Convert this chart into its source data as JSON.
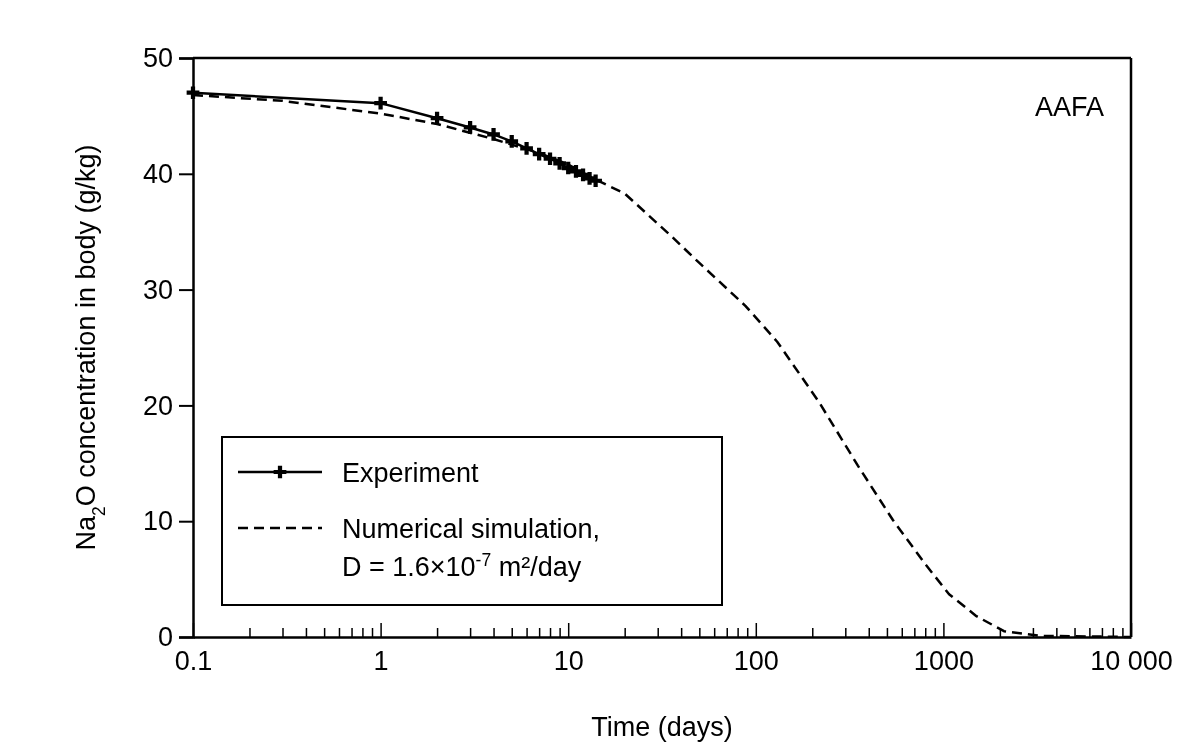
{
  "chart_data": {
    "type": "line",
    "xlabel": "Time (days)",
    "ylabel": "Na$_{2}$O concentration in body (g/kg)",
    "log": "x",
    "xlim": [
      0.1,
      10000
    ],
    "ylim": [
      0,
      50
    ],
    "xticks": [
      0.1,
      {
        "value": 0.2,
        "label": null
      },
      {
        "value": 0.3,
        "label": null
      },
      {
        "value": 0.4,
        "label": null
      },
      {
        "value": 0.5,
        "label": null
      },
      {
        "value": 0.6,
        "label": null
      },
      {
        "value": 0.7,
        "label": null
      },
      {
        "value": 0.8,
        "label": null
      },
      {
        "value": 0.9,
        "label": null
      },
      1,
      {
        "value": 2,
        "label": null
      },
      {
        "value": 3,
        "label": null
      },
      {
        "value": 4,
        "label": null
      },
      {
        "value": 5,
        "label": null
      },
      {
        "value": 6,
        "label": null
      },
      {
        "value": 7,
        "label": null
      },
      {
        "value": 8,
        "label": null
      },
      {
        "value": 9,
        "label": null
      },
      10,
      {
        "value": 20,
        "label": null
      },
      {
        "value": 30,
        "label": null
      },
      {
        "value": 40,
        "label": null
      },
      {
        "value": 50,
        "label": null
      },
      {
        "value": 60,
        "label": null
      },
      {
        "value": 70,
        "label": null
      },
      {
        "value": 80,
        "label": null
      },
      {
        "value": 90,
        "label": null
      },
      100,
      {
        "value": 200,
        "label": null
      },
      {
        "value": 300,
        "label": null
      },
      {
        "value": 400,
        "label": null
      },
      {
        "value": 500,
        "label": null
      },
      {
        "value": 600,
        "label": null
      },
      {
        "value": 700,
        "label": null
      },
      {
        "value": 800,
        "label": null
      },
      {
        "value": 900,
        "label": null
      },
      1000,
      {
        "value": 2000,
        "label": null
      },
      {
        "value": 3000,
        "label": null
      },
      {
        "value": 4000,
        "label": null
      },
      {
        "value": 5000,
        "label": null
      },
      {
        "value": 6000,
        "label": null
      },
      {
        "value": 7000,
        "label": null
      },
      {
        "value": 8000,
        "label": null
      },
      {
        "value": 9000,
        "label": null
      },
      {
        "value": 10000,
        "label": "10 000"
      }
    ],
    "yticks": [
      0,
      10,
      20,
      30,
      40,
      50
    ],
    "grid": false,
    "legend": "bottom left",
    "annotations": [
      "AAFA"
    ],
    "series": [
      {
        "name": "Experiment",
        "color": "#000000",
        "marker": "cross",
        "line_style": "solid",
        "x": [
          0.1,
          1,
          2,
          3,
          4,
          5,
          6,
          7,
          8,
          9,
          10,
          11,
          12,
          13,
          14
        ],
        "values": [
          47,
          46.1,
          44.8,
          44,
          43.4,
          42.8,
          42.2,
          41.7,
          41.3,
          40.9,
          40.5,
          40.2,
          39.9,
          39.6,
          39.4
        ]
      },
      {
        "name": "Numerical simulation, D = 1.6×10$^{-7}$ m²/day",
        "color": "#000000",
        "marker": "none",
        "line_style": "dashed",
        "x": [
          0.1,
          0.3,
          1,
          2,
          4,
          7,
          10,
          14,
          20,
          35,
          50,
          88,
          130,
          217,
          350,
          538,
          800,
          1072,
          1500,
          2104,
          3311,
          10000
        ],
        "values": [
          46.8,
          46.3,
          45.2,
          44.3,
          43,
          41.8,
          40.8,
          39.5,
          38.3,
          34.7,
          32.3,
          28.6,
          25.5,
          20.3,
          14.8,
          10.1,
          6.3,
          3.7,
          1.8,
          0.5,
          0.1,
          0
        ]
      }
    ]
  }
}
